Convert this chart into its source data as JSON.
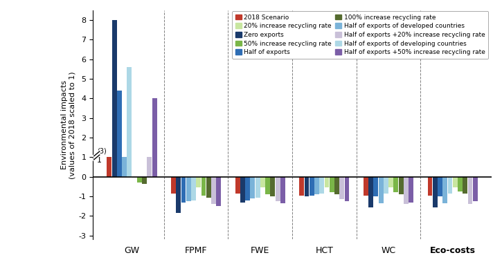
{
  "categories": [
    "GW",
    "FPMF",
    "FWE",
    "HCT",
    "WC",
    "Eco-costs"
  ],
  "series": {
    "2018 Scenario": [
      1.0,
      -0.85,
      -0.85,
      -0.95,
      -0.95,
      -0.95
    ],
    "Zero exports": [
      8.0,
      -1.85,
      -1.3,
      -1.0,
      -1.55,
      -1.55
    ],
    "Half of exports": [
      4.4,
      -1.3,
      -1.2,
      -0.95,
      -1.0,
      -1.0
    ],
    "Half of exports of developed countries": [
      1.0,
      -1.25,
      -1.1,
      -0.9,
      -1.35,
      -1.35
    ],
    "Half of exports of developing countries": [
      5.6,
      -1.2,
      -1.05,
      -0.85,
      -0.85,
      -0.85
    ],
    "20% increase recycling rate": [
      -0.05,
      -0.55,
      -0.55,
      -0.55,
      -0.55,
      -0.55
    ],
    "50% increase recycling rate": [
      -0.3,
      -0.95,
      -0.9,
      -0.8,
      -0.8,
      -0.75
    ],
    "100% increase recycling rate": [
      -0.35,
      -1.05,
      -1.0,
      -0.9,
      -0.9,
      -0.85
    ],
    "Half of exports +20% increase recycling rate": [
      1.0,
      -1.4,
      -1.25,
      -1.15,
      -1.4,
      -1.4
    ],
    "Half of exports +50% increase recycling rate": [
      4.0,
      -1.5,
      -1.35,
      -1.25,
      -1.3,
      -1.25
    ]
  },
  "colors": {
    "2018 Scenario": "#c0392b",
    "Zero exports": "#1a3a6b",
    "Half of exports": "#2e6db4",
    "Half of exports of developed countries": "#7ab3d9",
    "Half of exports of developing countries": "#add8e6",
    "20% increase recycling rate": "#c8e6a0",
    "50% increase recycling rate": "#7ab648",
    "100% increase recycling rate": "#556b2f",
    "Half of exports +20% increase recycling rate": "#c9c0d8",
    "Half of exports +50% increase recycling rate": "#7b5ea7"
  },
  "ylabel": "Environmental impacts\n(values of 2018 scaled to 1)",
  "ylim": [
    -3.2,
    8.5
  ],
  "yticks": [
    -3,
    -2,
    -1,
    0,
    1,
    2,
    3,
    4,
    5,
    6,
    7,
    8
  ],
  "note": "(3)",
  "title": ""
}
